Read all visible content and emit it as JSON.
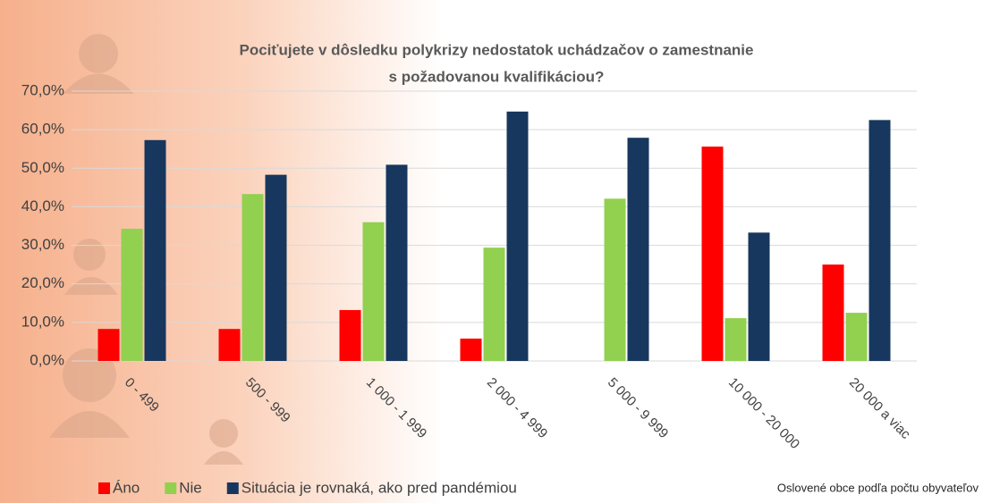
{
  "chart_data": {
    "type": "bar",
    "title": [
      "Pociťujete v dôsledku polykrizy nedostatok uchádzačov o zamestnanie",
      "s požadovanou kvalifikáciou?"
    ],
    "x_label": "Oslovené obce podľa počtu obyvateľov",
    "categories": [
      "0 - 499",
      "500 - 999",
      "1 000 - 1 999",
      "2 000 - 4 999",
      "5 000 - 9 999",
      "10 000 - 20 000",
      "20 000 a viac"
    ],
    "series": [
      {
        "name": "Áno",
        "color": "#ff0000",
        "values": [
          8.3,
          8.3,
          13.2,
          5.8,
          0,
          55.6,
          25.0
        ]
      },
      {
        "name": "Nie",
        "color": "#92d050",
        "values": [
          34.3,
          43.3,
          36.0,
          29.4,
          42.1,
          11.1,
          12.5
        ]
      },
      {
        "name": "Situácia je rovnaká, ako pred pandémiou",
        "color": "#17375e",
        "values": [
          57.3,
          48.3,
          50.9,
          64.7,
          57.9,
          33.3,
          62.5
        ]
      }
    ],
    "ylim": [
      0,
      70
    ],
    "yticks": [
      {
        "value": 0,
        "label": "0,0%"
      },
      {
        "value": 10,
        "label": "10,0%"
      },
      {
        "value": 20,
        "label": "20,0%"
      },
      {
        "value": 30,
        "label": "30,0%"
      },
      {
        "value": 40,
        "label": "40,0%"
      },
      {
        "value": 50,
        "label": "50,0%"
      },
      {
        "value": 60,
        "label": "60,0%"
      },
      {
        "value": 70,
        "label": "70,0%"
      }
    ],
    "grid": true
  }
}
